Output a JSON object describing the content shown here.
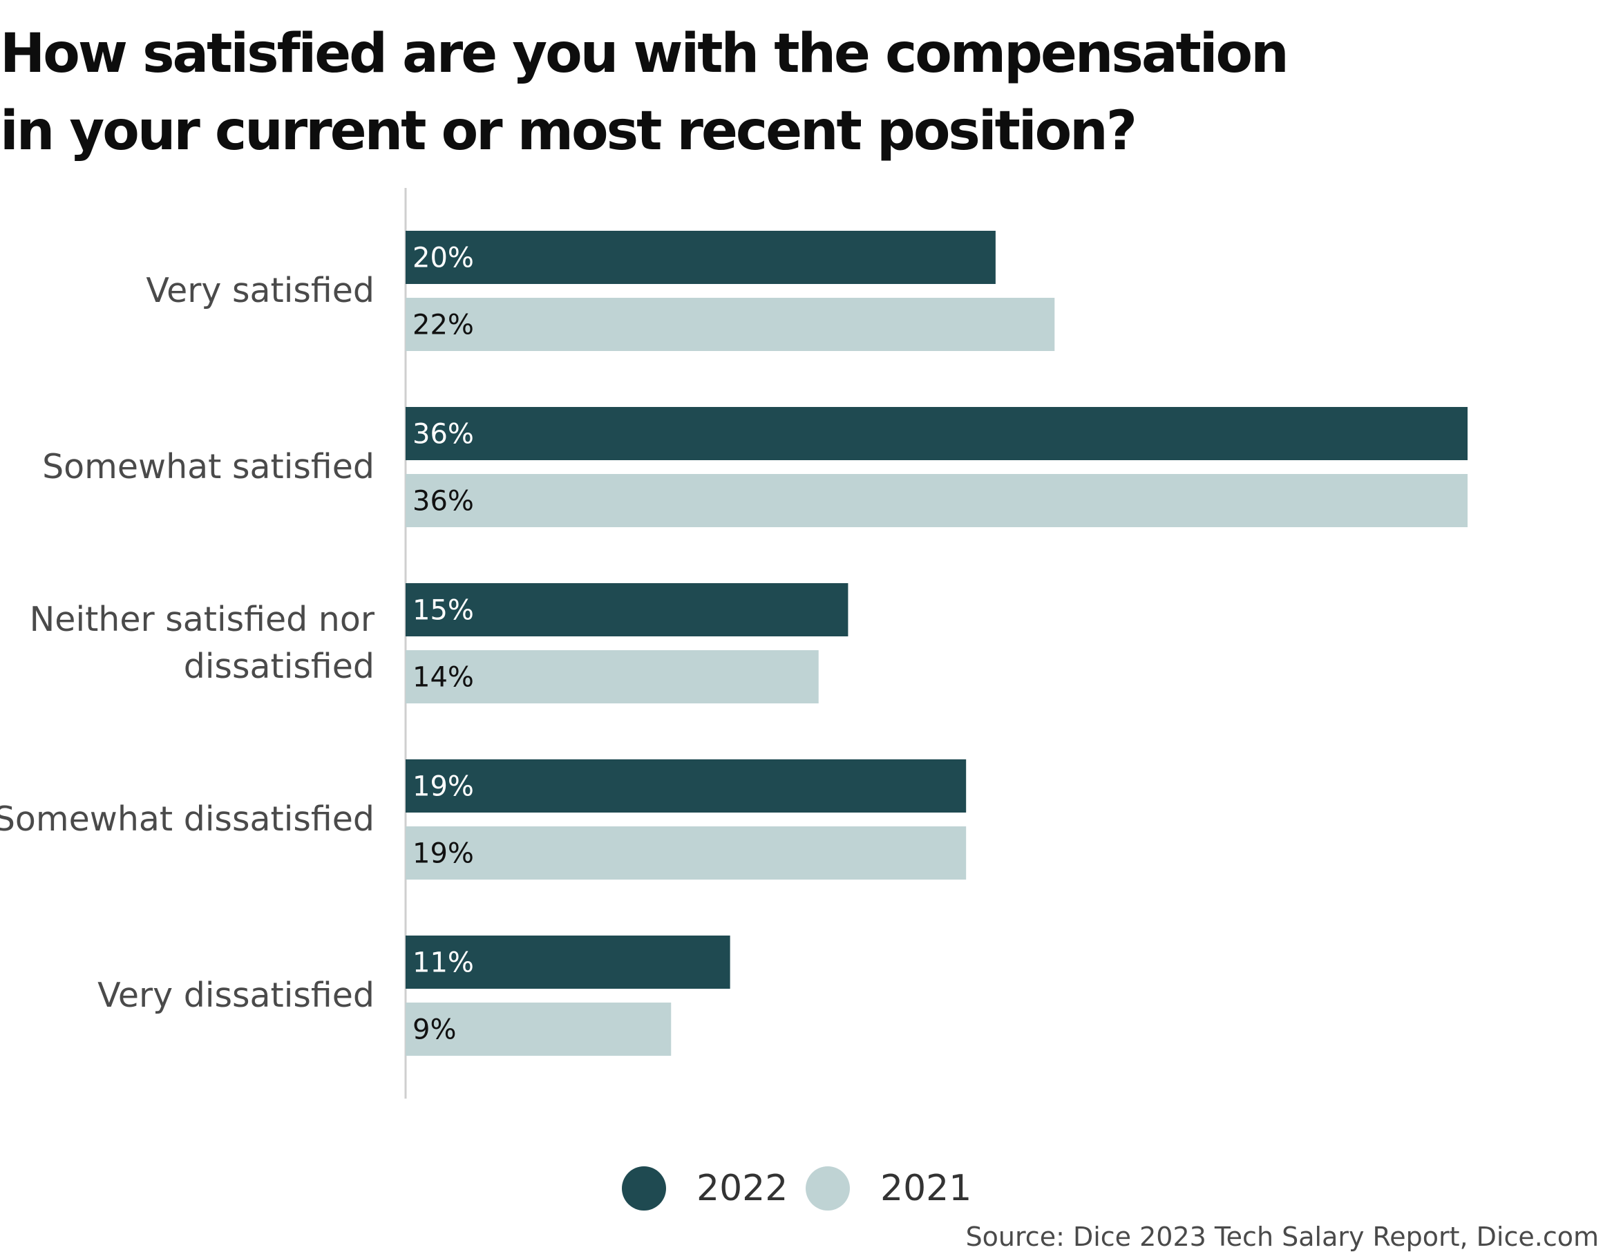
{
  "title_lines": [
    "How satisfied are you with the compensation",
    "in your current or most recent position?"
  ],
  "source": "Source: Dice 2023 Tech Salary Report, Dice.com",
  "chart_data": {
    "type": "bar",
    "orientation": "horizontal",
    "title": "How satisfied are you with the compensation in your current or most recent position?",
    "categories": [
      [
        "Very satisfied"
      ],
      [
        "Somewhat satisfied"
      ],
      [
        "Neither satisfied nor",
        "dissatisfied"
      ],
      [
        "Somewhat dissatisfied"
      ],
      [
        "Very dissatisfied"
      ]
    ],
    "series": [
      {
        "name": "2022",
        "color": "#1f4a51",
        "label_color": "#ffffff",
        "values": [
          20,
          36,
          15,
          19,
          11
        ],
        "labels": [
          "20%",
          "36%",
          "15%",
          "19%",
          "11%"
        ]
      },
      {
        "name": "2021",
        "color": "#bfd3d4",
        "label_color": "#111111",
        "values": [
          22,
          36,
          14,
          19,
          9
        ],
        "labels": [
          "22%",
          "36%",
          "14%",
          "19%",
          "9%"
        ]
      }
    ],
    "xlim": [
      0,
      36
    ],
    "unit": "%",
    "grid": false,
    "legend_position": "bottom-center"
  }
}
